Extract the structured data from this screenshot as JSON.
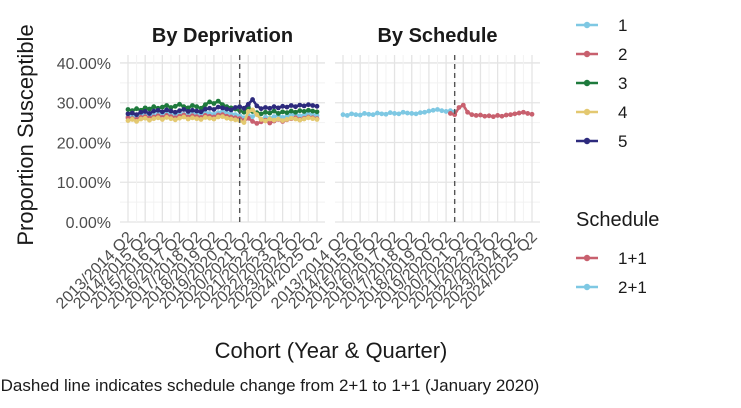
{
  "chart_data": {
    "type": "line",
    "ylabel": "Proportion Susceptible",
    "xlabel": "Cohort (Year & Quarter)",
    "caption": "Dashed line indicates schedule change from 2+1 to 1+1 (January 2020)",
    "ylim": [
      0,
      42
    ],
    "yticks": [
      "0.00%",
      "10.00%",
      "20.00%",
      "30.00%",
      "40.00%"
    ],
    "ytick_values": [
      0,
      10,
      20,
      30,
      40
    ],
    "x_tick_labels": [
      "2013/2014 Q2",
      "2014/2015 Q2",
      "2015/2016 Q2",
      "2016/2017 Q2",
      "2017/2018 Q2",
      "2018/2019 Q2",
      "2019/2020 Q2",
      "2020/2021 Q2",
      "2021/2022 Q2",
      "2022/2023 Q2",
      "2023/2024 Q2",
      "2024/2025 Q2"
    ],
    "n_quarters": 45,
    "change_index": 26,
    "grid": true,
    "panels": [
      {
        "title": "By Deprivation",
        "series": [
          {
            "name": "1",
            "color": "#7ec8e3",
            "values": [
              26.5,
              26.8,
              26.2,
              26.9,
              27.1,
              26.4,
              26.8,
              27.2,
              26.9,
              27.5,
              27.0,
              26.8,
              27.3,
              27.1,
              26.9,
              27.4,
              27.2,
              27.0,
              27.6,
              27.3,
              27.1,
              27.5,
              27.8,
              27.4,
              27.2,
              27.0,
              26.8,
              26.2,
              26.8,
              26.5,
              27.2,
              25.8,
              26.4,
              26.1,
              26.5,
              26.8,
              26.3,
              26.6,
              26.9,
              27.1,
              26.7,
              26.9,
              27.2,
              27.0,
              26.8
            ]
          },
          {
            "name": "2",
            "color": "#c8606e",
            "values": [
              26.2,
              26.0,
              25.8,
              26.3,
              26.5,
              26.1,
              26.4,
              26.7,
              26.3,
              26.8,
              26.5,
              26.2,
              26.6,
              26.9,
              26.4,
              26.7,
              26.5,
              26.3,
              26.8,
              26.6,
              26.4,
              26.9,
              27.0,
              26.6,
              26.4,
              26.2,
              26.0,
              25.5,
              26.1,
              25.3,
              24.8,
              25.2,
              25.6,
              24.9,
              25.4,
              25.8,
              25.3,
              25.7,
              26.0,
              26.2,
              25.8,
              26.1,
              26.4,
              26.2,
              26.0
            ]
          },
          {
            "name": "3",
            "color": "#1e7a3c",
            "values": [
              28.3,
              28.0,
              28.5,
              28.1,
              28.7,
              28.4,
              29.0,
              28.6,
              28.9,
              29.3,
              28.8,
              29.1,
              29.6,
              29.0,
              28.7,
              29.3,
              29.0,
              28.6,
              29.5,
              30.2,
              29.8,
              30.4,
              29.5,
              29.0,
              28.7,
              28.4,
              28.0,
              27.6,
              28.9,
              27.8,
              27.5,
              27.2,
              27.6,
              27.4,
              27.9,
              27.3,
              27.7,
              27.5,
              27.9,
              27.6,
              28.0,
              27.8,
              28.1,
              27.9,
              27.7
            ]
          },
          {
            "name": "4",
            "color": "#e3c870",
            "values": [
              25.5,
              25.8,
              25.3,
              25.9,
              26.1,
              25.6,
              26.0,
              26.2,
              25.8,
              26.3,
              26.0,
              25.7,
              26.1,
              26.4,
              25.9,
              26.2,
              26.0,
              25.8,
              26.3,
              26.1,
              25.9,
              26.4,
              26.5,
              26.1,
              25.9,
              25.7,
              25.5,
              25.0,
              27.8,
              28.2,
              27.0,
              25.8,
              25.4,
              25.9,
              25.6,
              25.9,
              25.5,
              25.8,
              26.1,
              25.9,
              25.6,
              25.9,
              26.2,
              26.0,
              25.8
            ]
          },
          {
            "name": "5",
            "color": "#2d2a7d",
            "values": [
              27.2,
              27.4,
              27.0,
              27.6,
              27.8,
              27.3,
              27.9,
              28.1,
              27.7,
              28.2,
              27.9,
              27.6,
              28.0,
              28.3,
              27.8,
              28.1,
              27.9,
              27.7,
              28.4,
              28.6,
              28.3,
              28.9,
              28.7,
              28.4,
              28.2,
              28.8,
              29.0,
              28.6,
              29.6,
              30.8,
              29.2,
              28.5,
              28.8,
              28.6,
              29.0,
              28.7,
              29.1,
              28.9,
              29.3,
              29.0,
              29.4,
              29.2,
              29.5,
              29.3,
              29.1
            ]
          }
        ]
      },
      {
        "title": "By Schedule",
        "series": [
          {
            "name": "2+1",
            "color": "#7ec8e3",
            "start": 0,
            "values": [
              27.0,
              26.8,
              27.2,
              27.0,
              26.9,
              27.3,
              27.1,
              27.0,
              27.4,
              27.2,
              27.1,
              27.5,
              27.3,
              27.2,
              27.6,
              27.4,
              27.3,
              27.2,
              27.5,
              27.6,
              27.9,
              28.1,
              28.3,
              28.0,
              27.8,
              28.0,
              27.7
            ]
          },
          {
            "name": "1+1",
            "color": "#c8606e",
            "start": 25,
            "values": [
              27.3,
              27.0,
              28.8,
              29.4,
              27.6,
              27.0,
              26.8,
              26.9,
              26.6,
              26.7,
              26.5,
              26.8,
              26.6,
              26.9,
              27.0,
              27.2,
              27.4,
              27.6,
              27.3,
              27.1
            ]
          }
        ]
      }
    ],
    "legends": [
      {
        "title": "",
        "entries": [
          {
            "label": "1",
            "color": "#7ec8e3"
          },
          {
            "label": "2",
            "color": "#c8606e"
          },
          {
            "label": "3",
            "color": "#1e7a3c"
          },
          {
            "label": "4",
            "color": "#e3c870"
          },
          {
            "label": "5",
            "color": "#2d2a7d"
          }
        ]
      },
      {
        "title": "Schedule",
        "entries": [
          {
            "label": "1+1",
            "color": "#c8606e"
          },
          {
            "label": "2+1",
            "color": "#7ec8e3"
          }
        ]
      }
    ]
  }
}
